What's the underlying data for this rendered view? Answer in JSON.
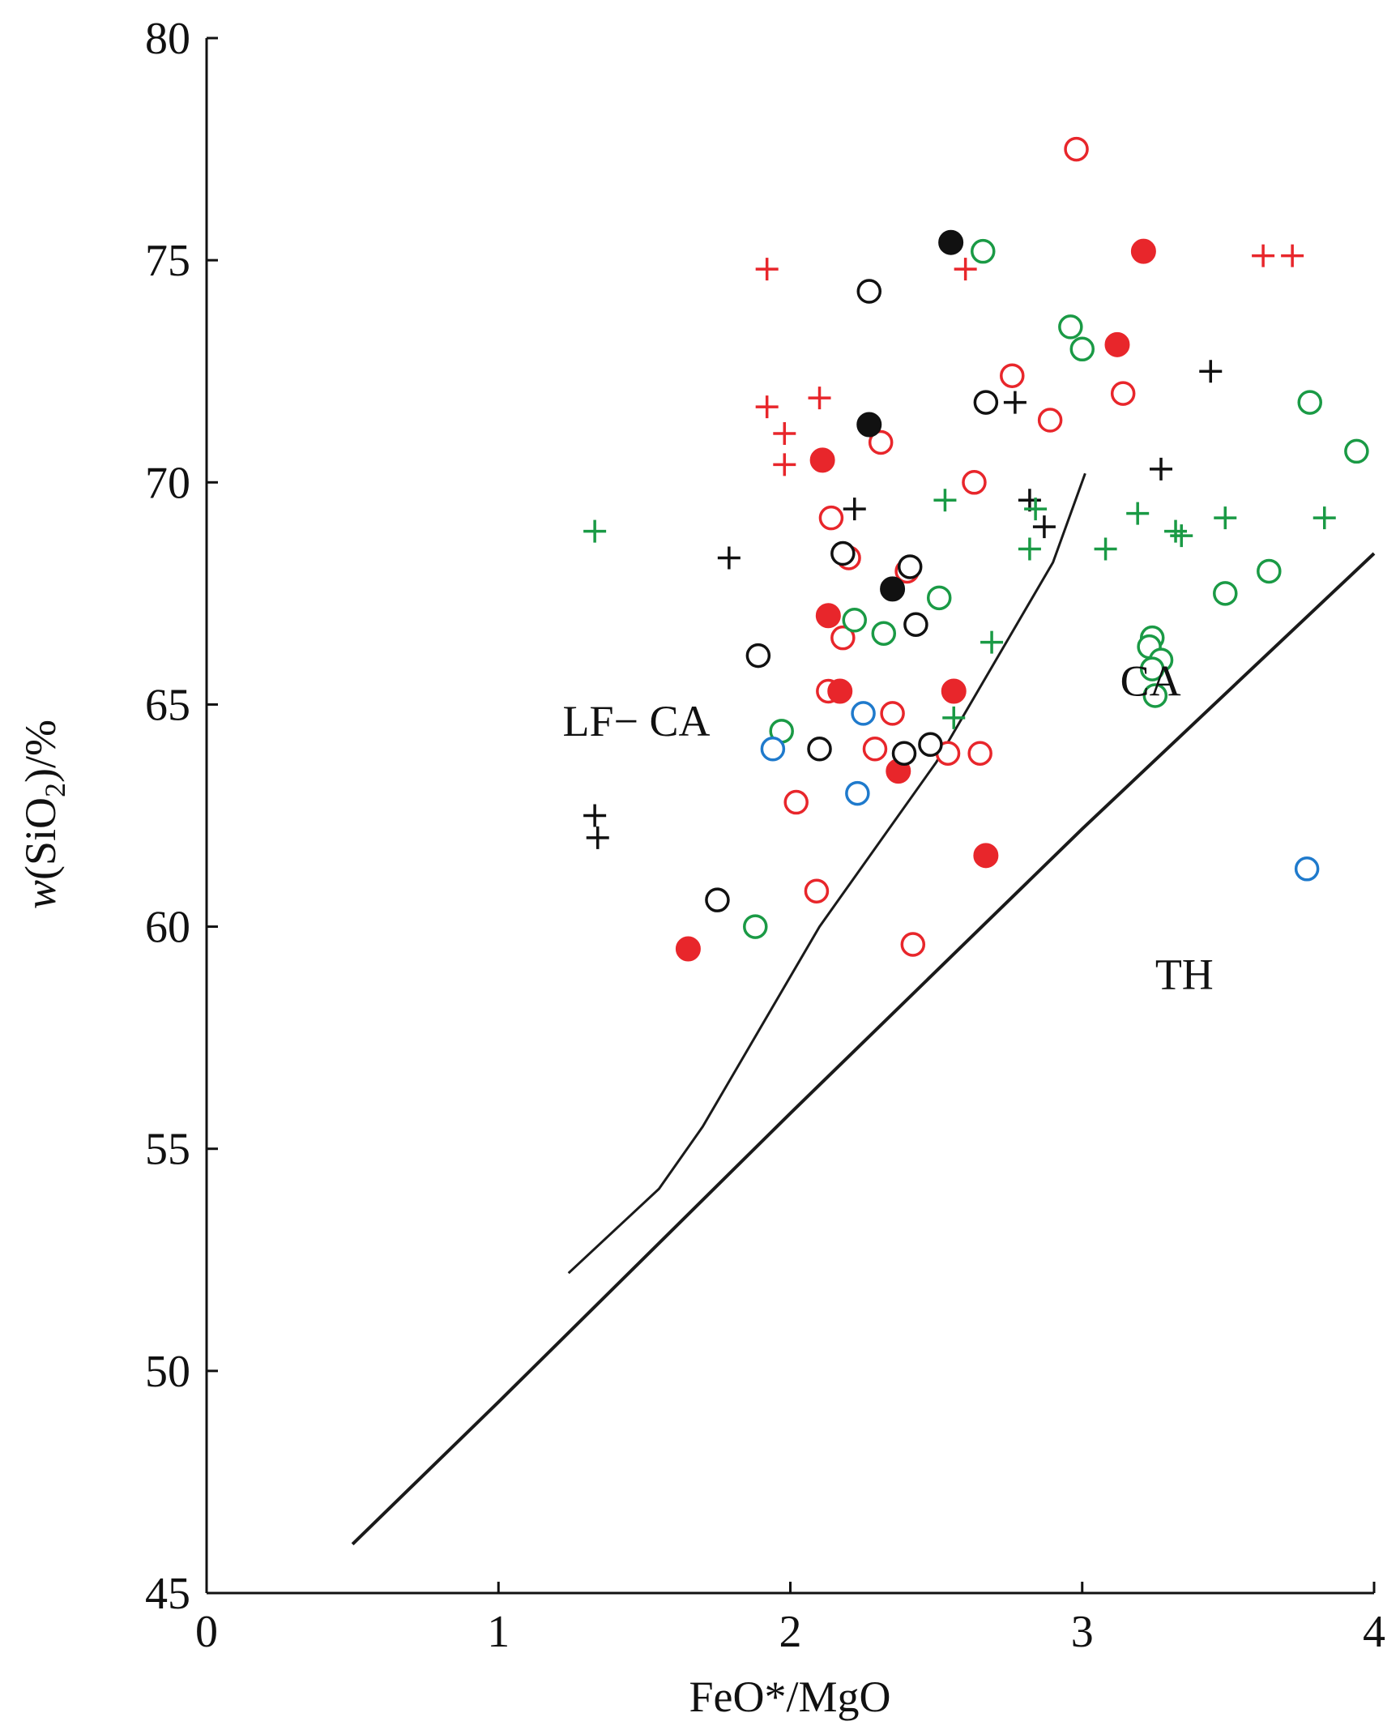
{
  "chart_data": {
    "type": "scatter",
    "title": "",
    "xlabel": "FeO*/MgO",
    "ylabel_parts": {
      "prefix": "w",
      "open": "(SiO",
      "sub": "2",
      "close": ")/%"
    },
    "xlim": [
      0,
      4
    ],
    "ylim": [
      45,
      80
    ],
    "x_ticks": [
      0,
      1,
      2,
      3,
      4
    ],
    "y_ticks": [
      45,
      50,
      55,
      60,
      65,
      70,
      75,
      80
    ],
    "x_tick_labels": [
      "0",
      "1",
      "2",
      "3",
      "4"
    ],
    "y_tick_labels": [
      "45",
      "50",
      "55",
      "60",
      "65",
      "70",
      "75",
      "80"
    ],
    "grid": false,
    "region_labels": [
      {
        "text": "LF− CA",
        "x": 1.22,
        "y": 64.3
      },
      {
        "text": "CA",
        "x": 3.13,
        "y": 65.2
      },
      {
        "text": "TH",
        "x": 3.25,
        "y": 58.6
      }
    ],
    "boundaries": [
      {
        "name": "LF-CA / CA boundary",
        "points": [
          [
            1.24,
            52.2
          ],
          [
            1.55,
            54.1
          ],
          [
            1.7,
            55.5
          ],
          [
            2.1,
            60.0
          ],
          [
            2.5,
            63.7
          ],
          [
            2.9,
            68.2
          ],
          [
            3.01,
            70.2
          ]
        ]
      },
      {
        "name": "CA / TH boundary",
        "points": [
          [
            0.5,
            46.1
          ],
          [
            1.0,
            49.3
          ],
          [
            2.0,
            55.8
          ],
          [
            3.0,
            62.2
          ],
          [
            4.0,
            68.4
          ]
        ]
      }
    ],
    "colors": {
      "red": "#e8262b",
      "black": "#111111",
      "green": "#1a9a45",
      "blue": "#1f7acc"
    },
    "series": [
      {
        "name": "red-open-circle",
        "marker": "open-circle",
        "color": "#e8262b",
        "points": [
          [
            2.98,
            77.5
          ],
          [
            2.76,
            72.4
          ],
          [
            3.14,
            72.0
          ],
          [
            2.89,
            71.4
          ],
          [
            2.31,
            70.9
          ],
          [
            2.63,
            70.0
          ],
          [
            2.14,
            69.2
          ],
          [
            2.2,
            68.3
          ],
          [
            2.4,
            68.0
          ],
          [
            2.18,
            66.5
          ],
          [
            2.13,
            65.3
          ],
          [
            2.35,
            64.8
          ],
          [
            2.29,
            64.0
          ],
          [
            2.54,
            63.9
          ],
          [
            2.65,
            63.9
          ],
          [
            2.02,
            62.8
          ],
          [
            2.09,
            60.8
          ],
          [
            2.42,
            59.6
          ]
        ]
      },
      {
        "name": "red-filled-circle",
        "marker": "filled-circle",
        "color": "#e8262b",
        "points": [
          [
            3.21,
            75.2
          ],
          [
            3.12,
            73.1
          ],
          [
            2.11,
            70.5
          ],
          [
            2.13,
            67.0
          ],
          [
            2.17,
            65.3
          ],
          [
            2.56,
            65.3
          ],
          [
            2.37,
            63.5
          ],
          [
            2.67,
            61.6
          ],
          [
            1.65,
            59.5
          ]
        ]
      },
      {
        "name": "red-plus",
        "marker": "plus",
        "color": "#e8262b",
        "points": [
          [
            1.92,
            74.8
          ],
          [
            2.6,
            74.8
          ],
          [
            3.62,
            75.1
          ],
          [
            3.72,
            75.1
          ],
          [
            2.1,
            71.9
          ],
          [
            1.92,
            71.7
          ],
          [
            1.98,
            71.1
          ],
          [
            1.98,
            70.4
          ]
        ]
      },
      {
        "name": "black-open-circle",
        "marker": "open-circle",
        "color": "#111111",
        "points": [
          [
            2.27,
            74.3
          ],
          [
            2.67,
            71.8
          ],
          [
            2.18,
            68.4
          ],
          [
            2.41,
            68.1
          ],
          [
            2.43,
            66.8
          ],
          [
            1.89,
            66.1
          ],
          [
            2.1,
            64.0
          ],
          [
            2.48,
            64.1
          ],
          [
            2.39,
            63.9
          ],
          [
            1.75,
            60.6
          ]
        ]
      },
      {
        "name": "black-filled-circle",
        "marker": "filled-circle",
        "color": "#111111",
        "points": [
          [
            2.55,
            75.4
          ],
          [
            2.27,
            71.3
          ],
          [
            2.35,
            67.6
          ]
        ]
      },
      {
        "name": "black-plus",
        "marker": "plus",
        "color": "#111111",
        "points": [
          [
            3.44,
            72.5
          ],
          [
            2.77,
            71.8
          ],
          [
            3.27,
            70.3
          ],
          [
            2.82,
            69.6
          ],
          [
            2.22,
            69.4
          ],
          [
            2.87,
            69.0
          ],
          [
            1.79,
            68.3
          ],
          [
            1.33,
            62.5
          ],
          [
            1.34,
            62.0
          ]
        ]
      },
      {
        "name": "green-open-circle",
        "marker": "open-circle",
        "color": "#1a9a45",
        "points": [
          [
            2.66,
            75.2
          ],
          [
            2.96,
            73.5
          ],
          [
            3.0,
            73.0
          ],
          [
            3.78,
            71.8
          ],
          [
            3.94,
            70.7
          ],
          [
            2.51,
            67.4
          ],
          [
            3.64,
            68.0
          ],
          [
            3.49,
            67.5
          ],
          [
            2.22,
            66.9
          ],
          [
            2.32,
            66.6
          ],
          [
            3.24,
            66.5
          ],
          [
            3.23,
            66.3
          ],
          [
            3.27,
            66.0
          ],
          [
            3.24,
            65.8
          ],
          [
            3.25,
            65.2
          ],
          [
            1.97,
            64.4
          ],
          [
            1.88,
            60.0
          ]
        ]
      },
      {
        "name": "green-plus",
        "marker": "plus",
        "color": "#1a9a45",
        "points": [
          [
            1.33,
            68.9
          ],
          [
            2.53,
            69.6
          ],
          [
            2.84,
            69.4
          ],
          [
            3.19,
            69.3
          ],
          [
            3.49,
            69.2
          ],
          [
            3.83,
            69.2
          ],
          [
            3.32,
            68.9
          ],
          [
            3.34,
            68.8
          ],
          [
            2.82,
            68.5
          ],
          [
            3.08,
            68.5
          ],
          [
            2.69,
            66.4
          ],
          [
            2.56,
            64.7
          ]
        ]
      },
      {
        "name": "blue-open-circle",
        "marker": "open-circle",
        "color": "#1f7acc",
        "points": [
          [
            2.25,
            64.8
          ],
          [
            1.94,
            64.0
          ],
          [
            2.23,
            63.0
          ],
          [
            3.77,
            61.3
          ]
        ]
      }
    ]
  }
}
